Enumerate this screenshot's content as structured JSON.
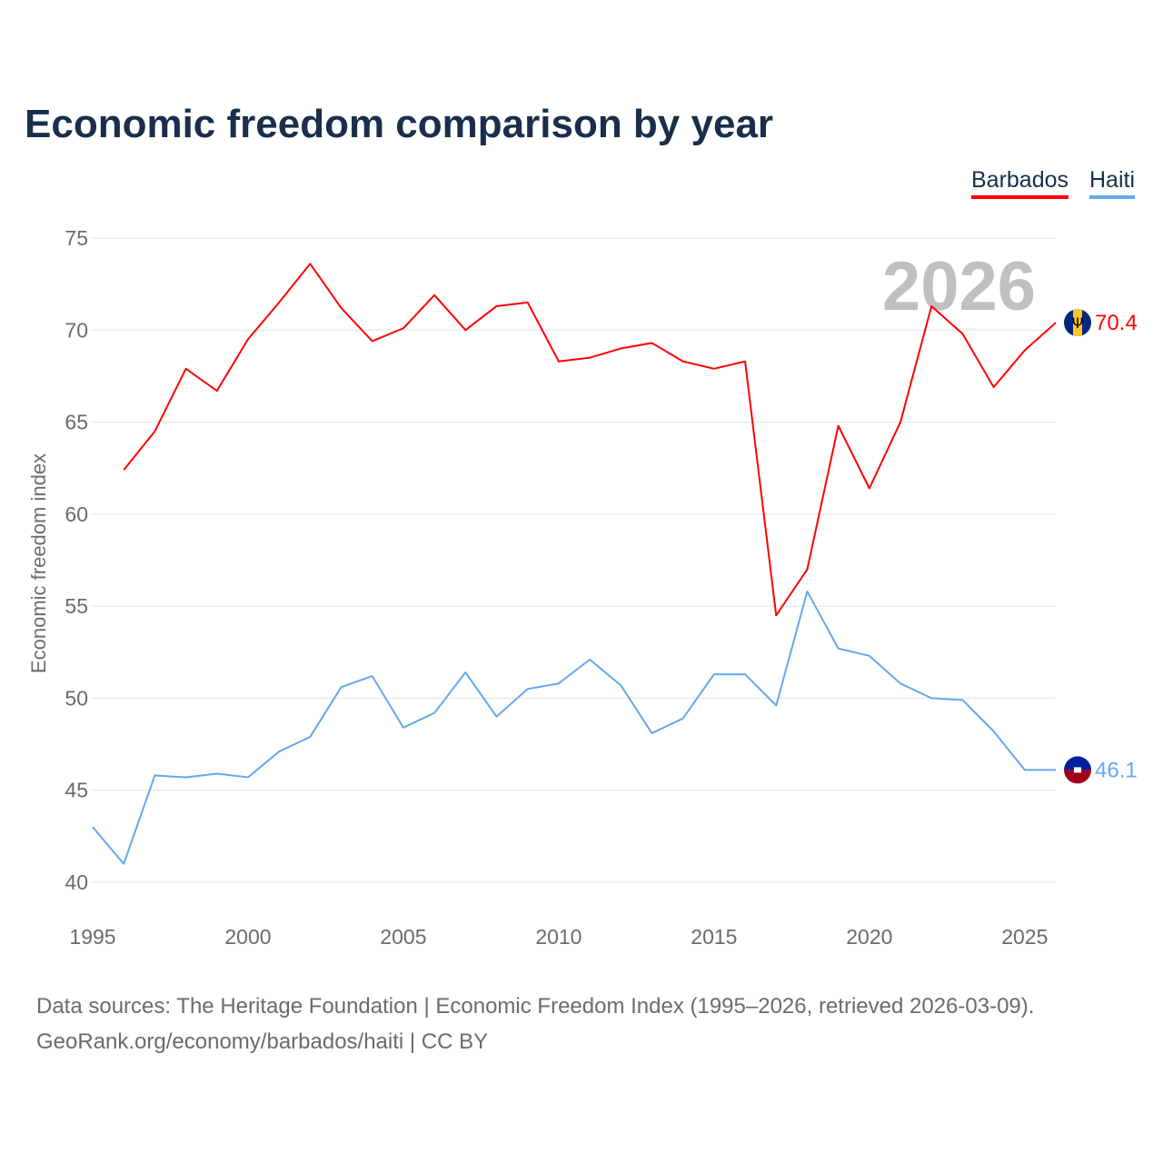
{
  "chart_data": {
    "type": "line",
    "title": "Economic freedom comparison by year",
    "ylabel": "Economic freedom index",
    "xlabel": "",
    "ylim": [
      40,
      75
    ],
    "xlim": [
      1995,
      2026
    ],
    "yticks": [
      40,
      45,
      50,
      55,
      60,
      65,
      70,
      75
    ],
    "xticks": [
      1995,
      2000,
      2005,
      2010,
      2015,
      2020,
      2025
    ],
    "grid": true,
    "legend_position": "top-right",
    "year_watermark": "2026",
    "series": [
      {
        "name": "Barbados",
        "color": "#ff0000",
        "end_label": "70.4",
        "x": [
          1996,
          1997,
          1998,
          1999,
          2000,
          2001,
          2002,
          2003,
          2004,
          2005,
          2006,
          2007,
          2008,
          2009,
          2010,
          2011,
          2012,
          2013,
          2014,
          2015,
          2016,
          2017,
          2018,
          2019,
          2020,
          2021,
          2022,
          2023,
          2024,
          2025,
          2026
        ],
        "values": [
          62.4,
          64.5,
          67.9,
          66.7,
          69.5,
          71.5,
          73.6,
          71.2,
          69.4,
          70.1,
          71.9,
          70.0,
          71.3,
          71.5,
          68.3,
          68.5,
          69.0,
          69.3,
          68.3,
          67.9,
          68.3,
          54.5,
          57.0,
          64.8,
          61.4,
          65.0,
          71.3,
          69.8,
          66.9,
          68.9,
          70.4
        ]
      },
      {
        "name": "Haiti",
        "color": "#63a9ec",
        "end_label": "46.1",
        "x": [
          1995,
          1996,
          1997,
          1998,
          1999,
          2000,
          2001,
          2002,
          2003,
          2004,
          2005,
          2006,
          2007,
          2008,
          2009,
          2010,
          2011,
          2012,
          2013,
          2014,
          2015,
          2016,
          2017,
          2018,
          2019,
          2020,
          2021,
          2022,
          2023,
          2024,
          2025,
          2026
        ],
        "values": [
          43.0,
          41.0,
          45.8,
          45.7,
          45.9,
          45.7,
          47.1,
          47.9,
          50.6,
          51.2,
          48.4,
          49.2,
          51.4,
          49.0,
          50.5,
          50.8,
          52.1,
          50.7,
          48.1,
          48.9,
          51.3,
          51.3,
          49.6,
          55.8,
          52.7,
          52.3,
          50.8,
          50.0,
          49.9,
          48.2,
          46.1,
          46.1
        ]
      }
    ]
  },
  "footer": {
    "line1": "Data sources: The Heritage Foundation | Economic Freedom Index (1995–2026, retrieved 2026-03-09).",
    "line2": "GeoRank.org/economy/barbados/haiti | CC BY"
  }
}
